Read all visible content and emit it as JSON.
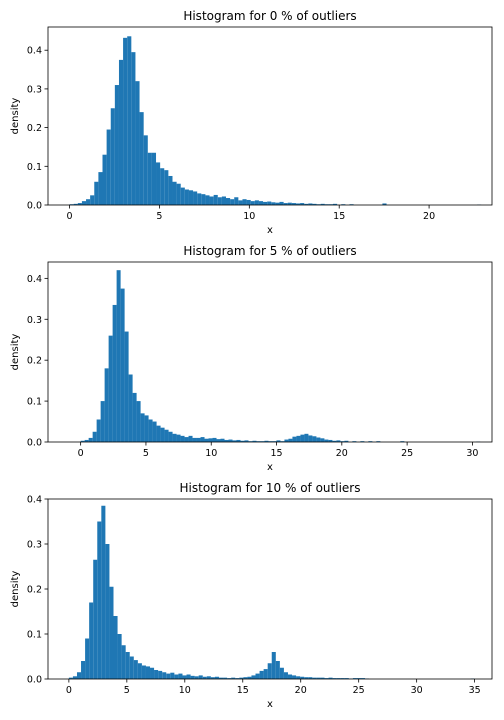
{
  "chart_data": [
    {
      "type": "bar",
      "title": "Histogram for 0 % of outliers",
      "xlabel": "x",
      "ylabel": "density",
      "xlim": [
        -1.2,
        23.5
      ],
      "ylim": [
        0,
        0.46
      ],
      "xticks": [
        0,
        5,
        10,
        15,
        20
      ],
      "yticks": [
        0.0,
        0.1,
        0.2,
        0.3,
        0.4
      ],
      "ytick_labels": [
        "0.0",
        "0.1",
        "0.2",
        "0.3",
        "0.4"
      ],
      "bin_width": 0.229,
      "bin_start": 0.0,
      "color": "#1f77b4",
      "values": [
        0.002,
        0.003,
        0.005,
        0.01,
        0.015,
        0.025,
        0.06,
        0.085,
        0.13,
        0.195,
        0.25,
        0.31,
        0.375,
        0.432,
        0.436,
        0.395,
        0.32,
        0.24,
        0.18,
        0.135,
        0.135,
        0.11,
        0.095,
        0.09,
        0.075,
        0.06,
        0.055,
        0.045,
        0.04,
        0.038,
        0.035,
        0.03,
        0.028,
        0.025,
        0.022,
        0.026,
        0.02,
        0.022,
        0.018,
        0.015,
        0.02,
        0.012,
        0.015,
        0.013,
        0.01,
        0.012,
        0.01,
        0.008,
        0.009,
        0.007,
        0.006,
        0.008,
        0.005,
        0.006,
        0.005,
        0.004,
        0.005,
        0.003,
        0.004,
        0.003,
        0.002,
        0.003,
        0.002,
        0.002,
        0.003,
        0.0,
        0.002,
        0.0,
        0.002,
        0.0,
        0.0,
        0.0,
        0.0,
        0.0,
        0.0,
        0.0,
        0.004,
        0.0,
        0.0,
        0.0,
        0.0,
        0.0,
        0.0,
        0.0,
        0.0,
        0.0,
        0.0,
        0.0,
        0.0,
        0.0,
        0.0,
        0.0,
        0.0,
        0.0,
        0.0,
        0.0,
        0.0,
        0.0,
        0.0,
        0.001
      ]
    },
    {
      "type": "bar",
      "title": "Histogram for 5 % of outliers",
      "xlabel": "x",
      "ylabel": "density",
      "xlim": [
        -2.5,
        31.5
      ],
      "ylim": [
        0,
        0.44
      ],
      "xticks": [
        0,
        5,
        10,
        15,
        20,
        25,
        30
      ],
      "yticks": [
        0.0,
        0.1,
        0.2,
        0.3,
        0.4
      ],
      "ytick_labels": [
        "0.0",
        "0.1",
        "0.2",
        "0.3",
        "0.4"
      ],
      "bin_width": 0.306,
      "bin_start": 0.0,
      "color": "#1f77b4",
      "values": [
        0.003,
        0.005,
        0.01,
        0.025,
        0.055,
        0.1,
        0.18,
        0.26,
        0.335,
        0.42,
        0.375,
        0.27,
        0.165,
        0.12,
        0.1,
        0.07,
        0.065,
        0.055,
        0.05,
        0.04,
        0.035,
        0.03,
        0.025,
        0.02,
        0.018,
        0.015,
        0.012,
        0.015,
        0.01,
        0.01,
        0.012,
        0.008,
        0.009,
        0.01,
        0.007,
        0.008,
        0.005,
        0.006,
        0.004,
        0.005,
        0.003,
        0.004,
        0.002,
        0.003,
        0.002,
        0.002,
        0.003,
        0.002,
        0.002,
        0.004,
        0.002,
        0.006,
        0.008,
        0.013,
        0.015,
        0.018,
        0.02,
        0.016,
        0.014,
        0.011,
        0.009,
        0.006,
        0.005,
        0.003,
        0.004,
        0.002,
        0.003,
        0.0,
        0.002,
        0.0,
        0.002,
        0.0,
        0.002,
        0.0,
        0.002,
        0.0,
        0.0,
        0.0,
        0.0,
        0.0,
        0.002,
        0.0,
        0.0,
        0.0,
        0.0,
        0.0,
        0.0,
        0.0,
        0.0,
        0.0,
        0.0,
        0.0,
        0.0,
        0.0,
        0.0,
        0.0,
        0.0,
        0.0,
        0.0,
        0.001
      ]
    },
    {
      "type": "bar",
      "title": "Histogram for 10 % of outliers",
      "xlabel": "x",
      "ylabel": "density",
      "xlim": [
        -1.8,
        36.5
      ],
      "ylim": [
        0,
        0.4
      ],
      "xticks": [
        0,
        5,
        10,
        15,
        20,
        25,
        30,
        35
      ],
      "yticks": [
        0.0,
        0.1,
        0.2,
        0.3,
        0.4
      ],
      "ytick_labels": [
        "0.0",
        "0.1",
        "0.2",
        "0.3",
        "0.4"
      ],
      "bin_width": 0.35,
      "bin_start": 0.0,
      "color": "#1f77b4",
      "values": [
        0.003,
        0.006,
        0.015,
        0.04,
        0.09,
        0.17,
        0.265,
        0.35,
        0.385,
        0.3,
        0.205,
        0.14,
        0.1,
        0.075,
        0.06,
        0.05,
        0.042,
        0.035,
        0.03,
        0.028,
        0.025,
        0.02,
        0.018,
        0.015,
        0.012,
        0.014,
        0.01,
        0.012,
        0.008,
        0.01,
        0.007,
        0.006,
        0.008,
        0.005,
        0.006,
        0.004,
        0.005,
        0.003,
        0.003,
        0.002,
        0.003,
        0.002,
        0.003,
        0.004,
        0.005,
        0.008,
        0.012,
        0.018,
        0.022,
        0.035,
        0.06,
        0.04,
        0.025,
        0.015,
        0.01,
        0.008,
        0.006,
        0.005,
        0.004,
        0.004,
        0.003,
        0.003,
        0.003,
        0.002,
        0.003,
        0.002,
        0.002,
        0.002,
        0.002,
        0.001,
        0.002,
        0.002,
        0.002,
        0.001,
        0.0,
        0.0,
        0.0,
        0.0,
        0.0,
        0.0,
        0.0,
        0.0,
        0.0,
        0.0,
        0.0,
        0.0,
        0.0,
        0.0,
        0.0,
        0.0,
        0.0,
        0.0,
        0.0,
        0.0,
        0.0,
        0.0,
        0.0,
        0.0,
        0.0,
        0.001
      ]
    }
  ]
}
